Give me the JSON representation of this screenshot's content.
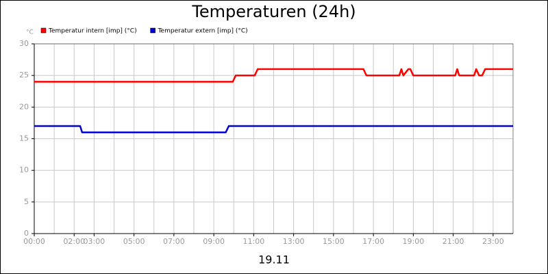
{
  "chart_data": {
    "type": "line",
    "title": "Temperaturen (24h)",
    "y_label": "°C",
    "x_label": "19.11",
    "xlim": [
      0,
      24
    ],
    "xticks": [
      {
        "value": 0,
        "label": "00:00"
      },
      {
        "value": 2,
        "label": "02:00"
      },
      {
        "value": 3,
        "label": "03:00"
      },
      {
        "value": 5,
        "label": "05:00"
      },
      {
        "value": 7,
        "label": "07:00"
      },
      {
        "value": 9,
        "label": "09:00"
      },
      {
        "value": 11,
        "label": "11:00"
      },
      {
        "value": 13,
        "label": "13:00"
      },
      {
        "value": 15,
        "label": "15:00"
      },
      {
        "value": 17,
        "label": "17:00"
      },
      {
        "value": 19,
        "label": "19:00"
      },
      {
        "value": 21,
        "label": "21:00"
      },
      {
        "value": 23,
        "label": "23:00"
      }
    ],
    "xminorticks": [
      1,
      2,
      3,
      4,
      5,
      6,
      7,
      8,
      9,
      10,
      11,
      12,
      13,
      14,
      15,
      16,
      17,
      18,
      19,
      20,
      21,
      22,
      23
    ],
    "ylim": [
      0,
      30
    ],
    "yticks": [
      0,
      5,
      10,
      15,
      20,
      25,
      30
    ],
    "grid": true,
    "legend": "top-left",
    "series": [
      {
        "name": "Temperatur intern [imp] (°C)",
        "color": "#ff0000",
        "x": [
          0,
          9.95,
          10.1,
          11.05,
          11.2,
          16.5,
          16.65,
          18.3,
          18.4,
          18.5,
          18.75,
          18.85,
          19.0,
          21.1,
          21.2,
          21.3,
          22.05,
          22.15,
          22.3,
          22.45,
          22.6,
          24
        ],
        "values": [
          24,
          24,
          25,
          25,
          26,
          26,
          25,
          25,
          26,
          25,
          26,
          26,
          25,
          25,
          26,
          25,
          25,
          26,
          25,
          25,
          26,
          26
        ]
      },
      {
        "name": "Temperatur extern [imp] (°C)",
        "color": "#0000cc",
        "x": [
          0,
          2.3,
          2.4,
          9.6,
          9.75,
          24
        ],
        "values": [
          17,
          17,
          16,
          16,
          17,
          17
        ]
      }
    ]
  }
}
